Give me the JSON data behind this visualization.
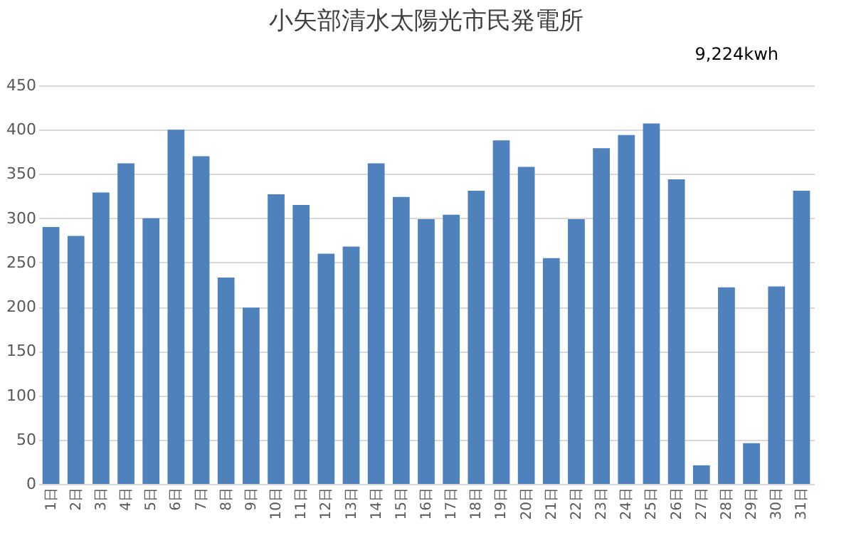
{
  "chart_data": {
    "type": "bar",
    "title": "小矢部清水太陽光市民発電所",
    "annotations": [
      "9,224kwh"
    ],
    "categories": [
      "1日",
      "2日",
      "3日",
      "4日",
      "5日",
      "6日",
      "7日",
      "8日",
      "9日",
      "10日",
      "11日",
      "12日",
      "13日",
      "14日",
      "15日",
      "16日",
      "17日",
      "18日",
      "19日",
      "20日",
      "21日",
      "22日",
      "23日",
      "24日",
      "25日",
      "26日",
      "27日",
      "28日",
      "29日",
      "30日",
      "31日"
    ],
    "values": [
      290,
      280,
      329,
      362,
      300,
      400,
      370,
      233,
      199,
      327,
      315,
      260,
      268,
      362,
      324,
      299,
      304,
      331,
      388,
      358,
      255,
      299,
      379,
      394,
      407,
      344,
      21,
      222,
      46,
      223,
      331
    ],
    "color": "#4f81bd",
    "ylim": [
      0,
      450
    ],
    "yticks": [
      0,
      50,
      100,
      150,
      200,
      250,
      300,
      350,
      400,
      450
    ],
    "grid": "y"
  }
}
